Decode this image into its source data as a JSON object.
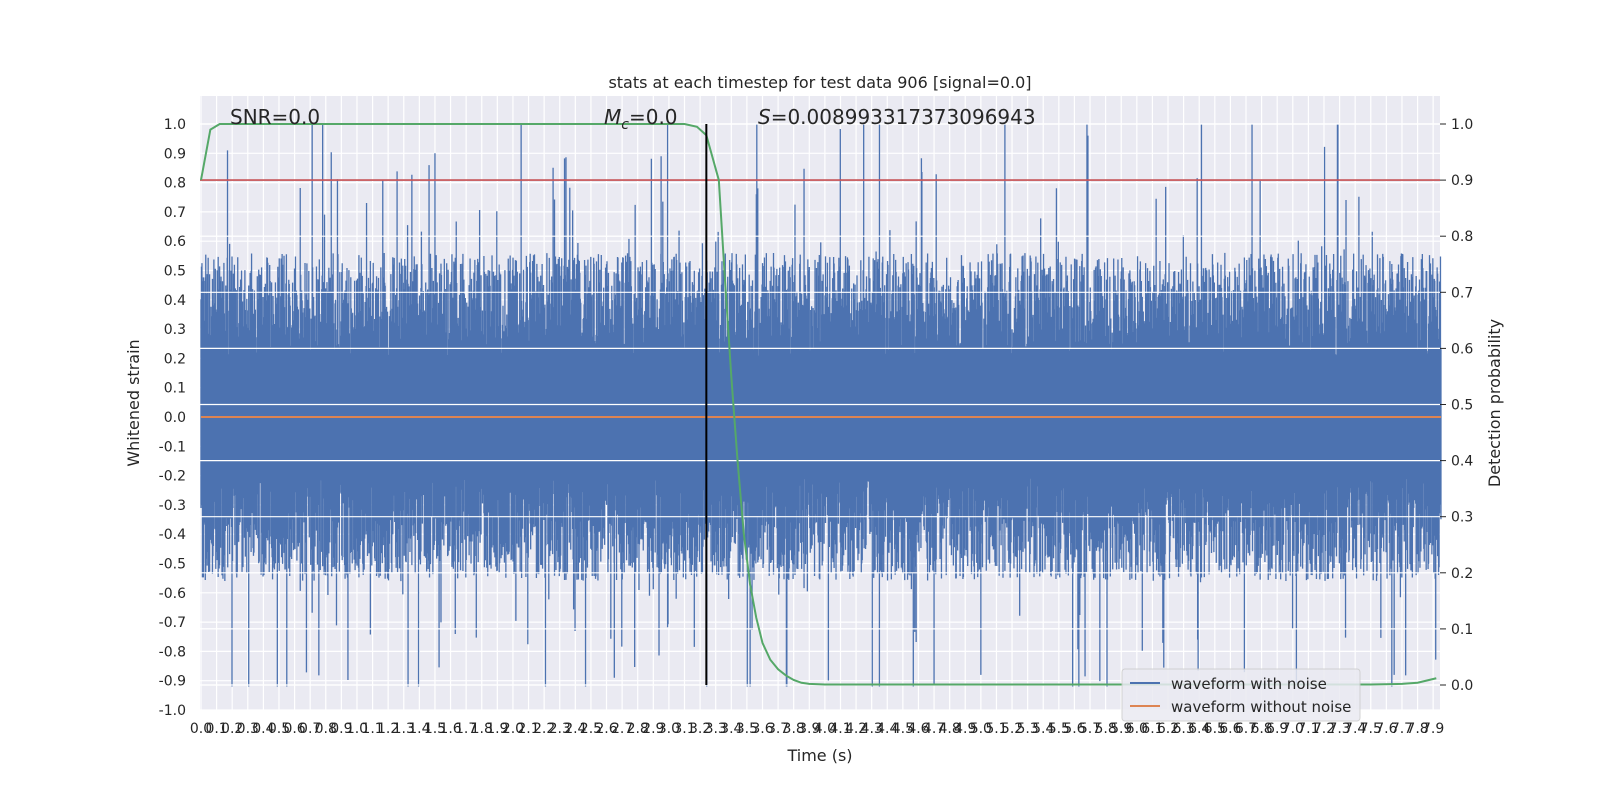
{
  "chart_data": {
    "type": "line",
    "title": "stats at each timestep for test data 906 [signal=0.0]",
    "xlabel": "Time (s)",
    "ylabel": "Whitened strain",
    "y2label": "Detection probability",
    "xlim": [
      0.0,
      7.95
    ],
    "ylim": [
      -1.0,
      1.0
    ],
    "y2lim": [
      -0.04,
      1.04
    ],
    "grid": true,
    "legend_position": "lower right",
    "annotations": {
      "snr": "SNR=0.0",
      "mc": "M",
      "mc_sub": "c",
      "mc_value": "=0.0",
      "s": "S",
      "s_value": "=0.008993317373096943"
    },
    "x_ticks": [
      "0.0",
      "0.1",
      "0.2",
      "0.3",
      "0.4",
      "0.5",
      "0.6",
      "0.7",
      "0.8",
      "0.9",
      "1.0",
      "1.1",
      "1.2",
      "1.3",
      "1.4",
      "1.5",
      "1.6",
      "1.7",
      "1.8",
      "1.9",
      "2.0",
      "2.1",
      "2.2",
      "2.3",
      "2.4",
      "2.5",
      "2.6",
      "2.7",
      "2.8",
      "2.9",
      "3.0",
      "3.1",
      "3.2",
      "3.3",
      "3.4",
      "3.5",
      "3.6",
      "3.7",
      "3.8",
      "3.9",
      "4.0",
      "4.1",
      "4.2",
      "4.3",
      "4.4",
      "4.5",
      "4.6",
      "4.7",
      "4.8",
      "4.9",
      "5.0",
      "5.1",
      "5.2",
      "5.3",
      "5.4",
      "5.5",
      "5.6",
      "5.7",
      "5.8",
      "5.9",
      "6.0",
      "6.1",
      "6.2",
      "6.3",
      "6.4",
      "6.5",
      "6.6",
      "6.7",
      "6.8",
      "6.9",
      "7.0",
      "7.1",
      "7.2",
      "7.3",
      "7.4",
      "7.5",
      "7.6",
      "7.7",
      "7.8",
      "7.9"
    ],
    "y_ticks": [
      "-1.0",
      "-0.9",
      "-0.8",
      "-0.7",
      "-0.6",
      "-0.5",
      "-0.4",
      "-0.3",
      "-0.2",
      "-0.1",
      "0.0",
      "0.1",
      "0.2",
      "0.3",
      "0.4",
      "0.5",
      "0.6",
      "0.7",
      "0.8",
      "0.9",
      "1.0"
    ],
    "y2_ticks": [
      "0.0",
      "0.1",
      "0.2",
      "0.3",
      "0.4",
      "0.5",
      "0.6",
      "0.7",
      "0.8",
      "0.9",
      "1.0"
    ],
    "threshold": {
      "value": 0.9,
      "axis": "right",
      "color": "#c44e52"
    },
    "vline": {
      "x": 3.24,
      "color": "#000000"
    },
    "series": [
      {
        "name": "waveform with noise",
        "axis": "left",
        "color": "#4c72b0",
        "kind": "noise",
        "x_range": [
          0.0,
          7.95
        ],
        "envelope": {
          "typical_max": 0.4,
          "typical_min": -0.4,
          "max": 1.0,
          "min": -0.92
        }
      },
      {
        "name": "waveform without noise",
        "axis": "left",
        "color": "#dd8452",
        "x": [
          0.0,
          7.95
        ],
        "y": [
          0.0,
          0.0
        ]
      },
      {
        "name": "",
        "axis": "right",
        "color": "#55a868",
        "x": [
          0.0,
          0.06,
          0.12,
          0.2,
          0.5,
          1.0,
          1.5,
          2.0,
          2.5,
          3.0,
          3.1,
          3.18,
          3.24,
          3.28,
          3.32,
          3.36,
          3.4,
          3.44,
          3.48,
          3.52,
          3.56,
          3.6,
          3.65,
          3.7,
          3.75,
          3.8,
          3.85,
          3.9,
          4.0,
          4.5,
          5.0,
          5.5,
          6.0,
          6.5,
          7.0,
          7.5,
          7.7,
          7.8,
          7.86,
          7.92
        ],
        "y": [
          0.9,
          0.99,
          1.0,
          1.0,
          1.0,
          1.0,
          1.0,
          1.0,
          1.0,
          1.0,
          1.0,
          0.995,
          0.98,
          0.94,
          0.9,
          0.72,
          0.55,
          0.4,
          0.27,
          0.18,
          0.12,
          0.075,
          0.045,
          0.028,
          0.017,
          0.009,
          0.004,
          0.002,
          0.001,
          0.001,
          0.001,
          0.001,
          0.001,
          0.001,
          0.001,
          0.001,
          0.002,
          0.004,
          0.008,
          0.012
        ]
      }
    ]
  }
}
